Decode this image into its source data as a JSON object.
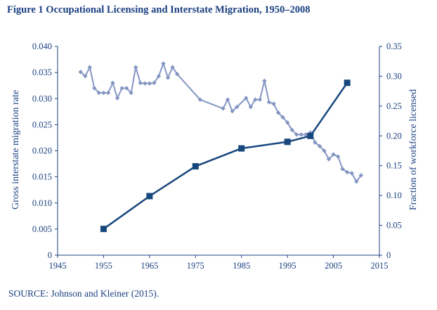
{
  "figure": {
    "title": "Figure 1  Occupational Licensing and Interstate Migration, 1950–2008",
    "source": "SOURCE: Johnson and Kleiner (2015).",
    "title_color": "#1a3f80",
    "source_color": "#1a3f80"
  },
  "chart_data": {
    "type": "line",
    "title": "Figure 1  Occupational Licensing and Interstate Migration, 1950–2008",
    "xlabel": "",
    "ylabel": "Gross interstate migration rate",
    "y2label": "Fraction of workforce licensed",
    "xlim": [
      1945,
      2015
    ],
    "ylim": [
      0,
      0.04
    ],
    "y2lim": [
      0,
      0.35
    ],
    "x_ticks": [
      "1945",
      "1955",
      "1965",
      "1975",
      "1985",
      "1995",
      "2005",
      "2015"
    ],
    "y_ticks": [
      "0",
      "0.005",
      "0.010",
      "0.015",
      "0.020",
      "0.025",
      "0.030",
      "0.035",
      "0.040"
    ],
    "y2_ticks": [
      "0",
      "0.05",
      "0.10",
      "0.15",
      "0.20",
      "0.25",
      "0.30",
      "0.35"
    ],
    "grid": false,
    "legend": "none",
    "series": [
      {
        "axis": "left",
        "color": "#8596c3",
        "marker": "diamond",
        "x": [
          1950,
          1951,
          1952,
          1953,
          1954,
          1955,
          1956,
          1957,
          1958,
          1959,
          1960,
          1961,
          1962,
          1963,
          1964,
          1965,
          1966,
          1967,
          1968,
          1969,
          1970,
          1971,
          1976,
          1981,
          1982,
          1983,
          1984,
          1986,
          1987,
          1988,
          1989,
          1990,
          1991,
          1992,
          1993,
          1994,
          1995,
          1996,
          1997,
          1998,
          1999,
          2000,
          2001,
          2002,
          2003,
          2004,
          2005,
          2006,
          2007,
          2008,
          2009,
          2010,
          2011
        ],
        "values": [
          0.0351,
          0.0343,
          0.036,
          0.032,
          0.0311,
          0.0311,
          0.0311,
          0.033,
          0.0301,
          0.032,
          0.032,
          0.0311,
          0.036,
          0.033,
          0.0329,
          0.0329,
          0.033,
          0.0343,
          0.0367,
          0.034,
          0.036,
          0.0347,
          0.0298,
          0.0281,
          0.0298,
          0.0276,
          0.0284,
          0.0301,
          0.0284,
          0.0298,
          0.0298,
          0.0334,
          0.0293,
          0.029,
          0.0273,
          0.0264,
          0.0254,
          0.024,
          0.0231,
          0.0231,
          0.0231,
          0.0235,
          0.0216,
          0.0209,
          0.02,
          0.0184,
          0.0193,
          0.0189,
          0.0165,
          0.0159,
          0.0157,
          0.0141,
          0.0153
        ]
      },
      {
        "axis": "right",
        "color": "#17477c",
        "marker": "square",
        "x": [
          1955,
          1965,
          1975,
          1985,
          1995,
          2000,
          2008
        ],
        "values": [
          0.044,
          0.099,
          0.149,
          0.179,
          0.19,
          0.2,
          0.289
        ]
      }
    ]
  }
}
